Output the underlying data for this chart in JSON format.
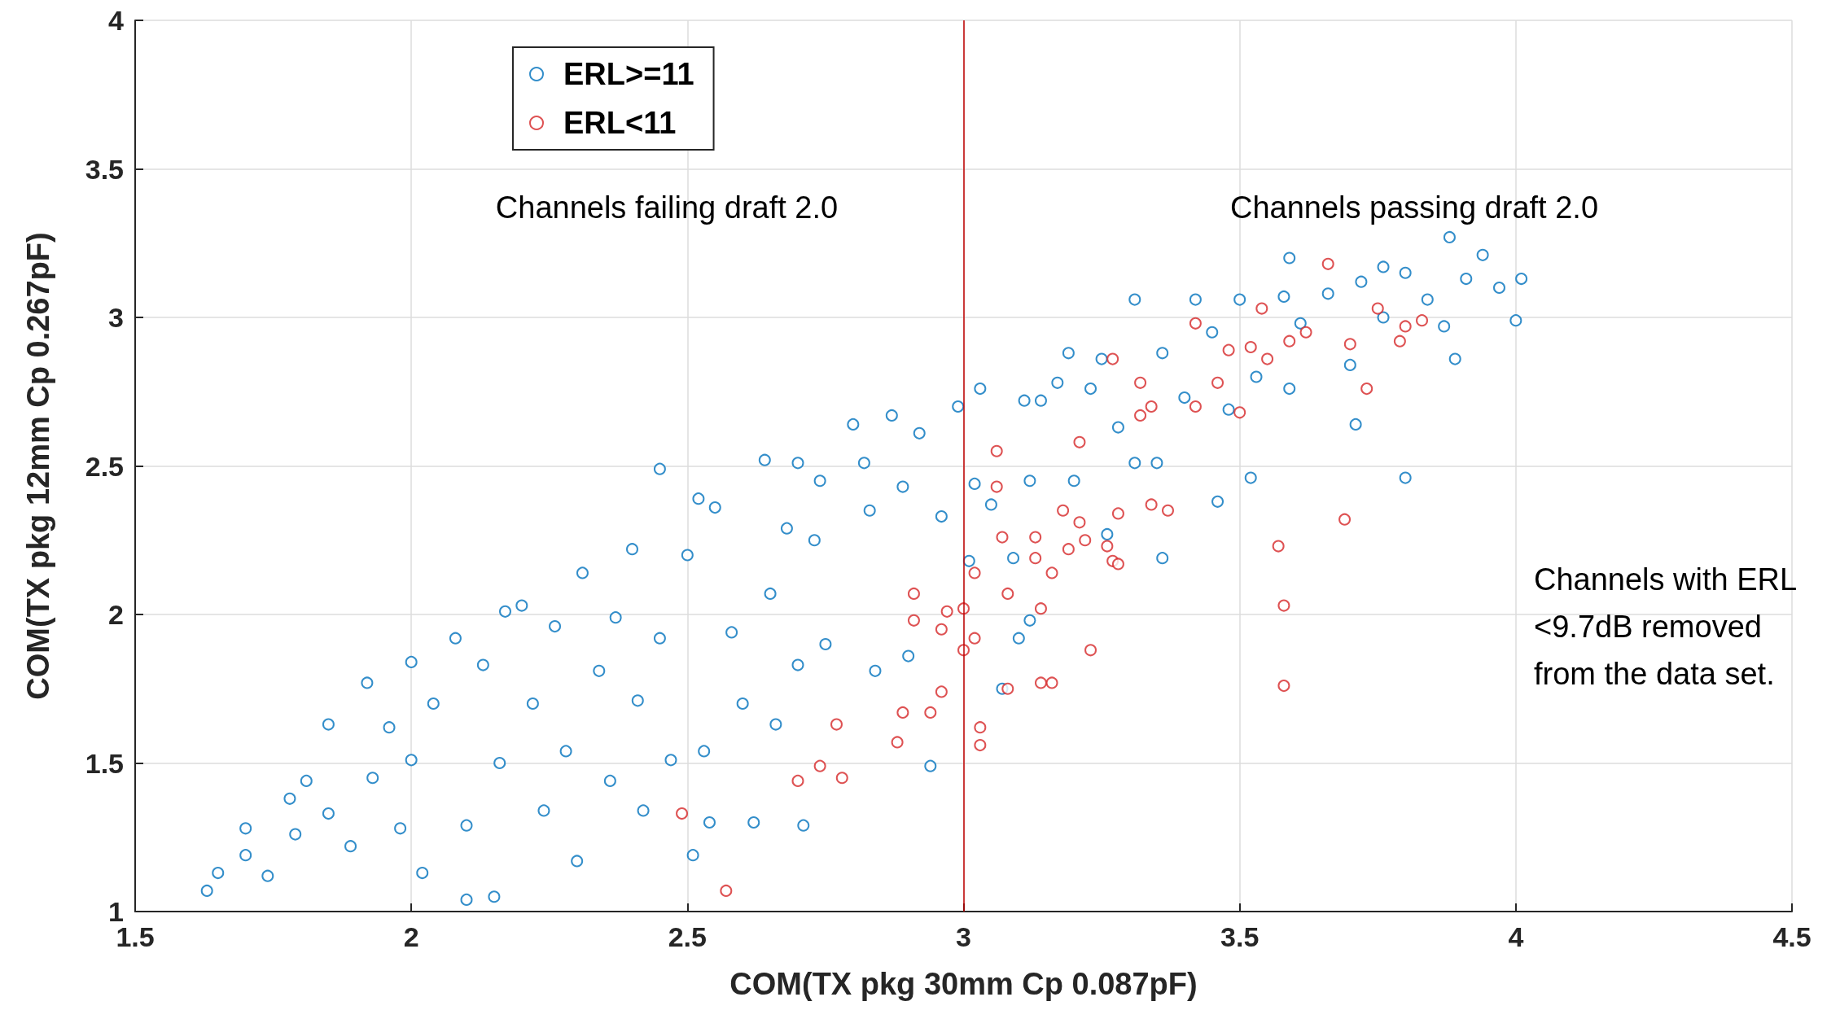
{
  "chart_data": {
    "type": "scatter",
    "xlabel": "COM(TX pkg 30mm Cp 0.087pF)",
    "ylabel": "COM(TX pkg 12mm Cp 0.267pF)",
    "xlim": [
      1.5,
      4.5
    ],
    "xticks": [
      1.5,
      2,
      2.5,
      3,
      3.5,
      4,
      4.5
    ],
    "ylim": [
      1,
      4
    ],
    "yticks": [
      1,
      1.5,
      2,
      2.5,
      3,
      3.5,
      4
    ],
    "grid": true,
    "legend": "top left",
    "marker": "circle",
    "annotations": [
      "Channels failing draft 2.0",
      "Channels passing draft 2.0",
      "Channels with ERL\n<9.7dB removed\nfrom the data set."
    ],
    "ref_lines": [
      {
        "axis": "x",
        "value": 3,
        "color": "#c00000"
      }
    ],
    "series": [
      {
        "name": "ERL>=11",
        "color": "#0072bd",
        "x": [
          1.63,
          1.65,
          1.7,
          1.7,
          1.74,
          1.78,
          1.79,
          1.81,
          1.85,
          1.85,
          1.89,
          1.92,
          1.93,
          1.96,
          1.98,
          2.0,
          2.0,
          2.02,
          2.04,
          2.08,
          2.1,
          2.1,
          2.13,
          2.15,
          2.16,
          2.17,
          2.2,
          2.22,
          2.24,
          2.26,
          2.28,
          2.3,
          2.31,
          2.34,
          2.36,
          2.37,
          2.4,
          2.41,
          2.42,
          2.45,
          2.45,
          2.47,
          2.5,
          2.51,
          2.52,
          2.53,
          2.54,
          2.55,
          2.58,
          2.6,
          2.62,
          2.64,
          2.65,
          2.66,
          2.68,
          2.7,
          2.7,
          2.71,
          2.73,
          2.74,
          2.75,
          2.8,
          2.82,
          2.83,
          2.84,
          2.87,
          2.89,
          2.9,
          2.92,
          2.94,
          2.96,
          2.99,
          3.01,
          3.02,
          3.03,
          3.05,
          3.07,
          3.09,
          3.1,
          3.11,
          3.12,
          3.14,
          3.12,
          3.17,
          3.19,
          3.2,
          3.23,
          3.25,
          3.26,
          3.28,
          3.31,
          3.31,
          3.35,
          3.36,
          3.36,
          3.4,
          3.42,
          3.45,
          3.46,
          3.48,
          3.5,
          3.52,
          3.53,
          3.58,
          3.59,
          3.59,
          3.61,
          3.66,
          3.7,
          3.71,
          3.72,
          3.76,
          3.76,
          3.8,
          3.8,
          3.84,
          3.87,
          3.88,
          3.89,
          3.91,
          3.94,
          3.97,
          4.0,
          4.01
        ],
        "values": [
          1.07,
          1.13,
          1.28,
          1.19,
          1.12,
          1.38,
          1.26,
          1.44,
          1.33,
          1.63,
          1.22,
          1.77,
          1.45,
          1.62,
          1.28,
          1.84,
          1.51,
          1.13,
          1.7,
          1.92,
          1.29,
          1.04,
          1.83,
          1.05,
          1.5,
          2.01,
          2.03,
          1.7,
          1.34,
          1.96,
          1.54,
          1.17,
          2.14,
          1.81,
          1.44,
          1.99,
          2.22,
          1.71,
          1.34,
          2.49,
          1.92,
          1.51,
          2.2,
          1.19,
          2.39,
          1.54,
          1.3,
          2.36,
          1.94,
          1.7,
          1.3,
          2.52,
          2.07,
          1.63,
          2.29,
          2.51,
          1.83,
          1.29,
          2.25,
          2.45,
          1.9,
          2.64,
          2.51,
          2.35,
          1.81,
          2.67,
          2.43,
          1.86,
          2.61,
          1.49,
          2.33,
          2.7,
          2.18,
          2.44,
          2.76,
          2.37,
          1.75,
          2.19,
          1.92,
          2.72,
          2.45,
          2.72,
          1.98,
          2.78,
          2.88,
          2.45,
          2.76,
          2.86,
          2.27,
          2.63,
          2.51,
          3.06,
          2.51,
          2.19,
          2.88,
          2.73,
          3.06,
          2.95,
          2.38,
          2.69,
          3.06,
          2.46,
          2.8,
          3.07,
          2.76,
          3.2,
          2.98,
          3.08,
          2.84,
          2.64,
          3.12,
          3.0,
          3.17,
          2.46,
          3.15,
          3.06,
          2.97,
          3.27,
          2.86,
          3.13,
          3.21,
          3.1,
          2.99,
          3.13
        ]
      },
      {
        "name": "ERL<11",
        "color": "#d62728",
        "x": [
          2.49,
          2.57,
          2.7,
          2.74,
          2.77,
          2.78,
          2.88,
          2.89,
          2.91,
          2.91,
          2.94,
          2.96,
          2.96,
          2.97,
          3.0,
          3.0,
          3.02,
          3.02,
          3.03,
          3.03,
          3.06,
          3.06,
          3.07,
          3.08,
          3.08,
          3.13,
          3.13,
          3.14,
          3.14,
          3.16,
          3.16,
          3.18,
          3.19,
          3.21,
          3.21,
          3.22,
          3.23,
          3.26,
          3.27,
          3.27,
          3.28,
          3.28,
          3.32,
          3.32,
          3.34,
          3.34,
          3.37,
          3.42,
          3.42,
          3.46,
          3.48,
          3.5,
          3.52,
          3.55,
          3.54,
          3.57,
          3.58,
          3.58,
          3.59,
          3.62,
          3.66,
          3.69,
          3.7,
          3.73,
          3.75,
          3.79,
          3.83,
          3.8
        ],
        "values": [
          1.33,
          1.07,
          1.44,
          1.49,
          1.63,
          1.45,
          1.57,
          1.67,
          2.07,
          1.98,
          1.67,
          1.95,
          1.74,
          2.01,
          1.88,
          2.02,
          2.14,
          1.92,
          1.62,
          1.56,
          2.55,
          2.43,
          2.26,
          2.07,
          1.75,
          2.26,
          2.19,
          2.02,
          1.77,
          1.77,
          2.14,
          2.35,
          2.22,
          2.58,
          2.31,
          2.25,
          1.88,
          2.23,
          2.18,
          2.86,
          2.17,
          2.34,
          2.67,
          2.78,
          2.37,
          2.7,
          2.35,
          2.7,
          2.98,
          2.78,
          2.89,
          2.68,
          2.9,
          2.86,
          3.03,
          2.23,
          2.03,
          1.76,
          2.92,
          2.95,
          3.18,
          2.32,
          2.91,
          2.76,
          3.03,
          2.92,
          2.99,
          2.97
        ]
      }
    ]
  }
}
